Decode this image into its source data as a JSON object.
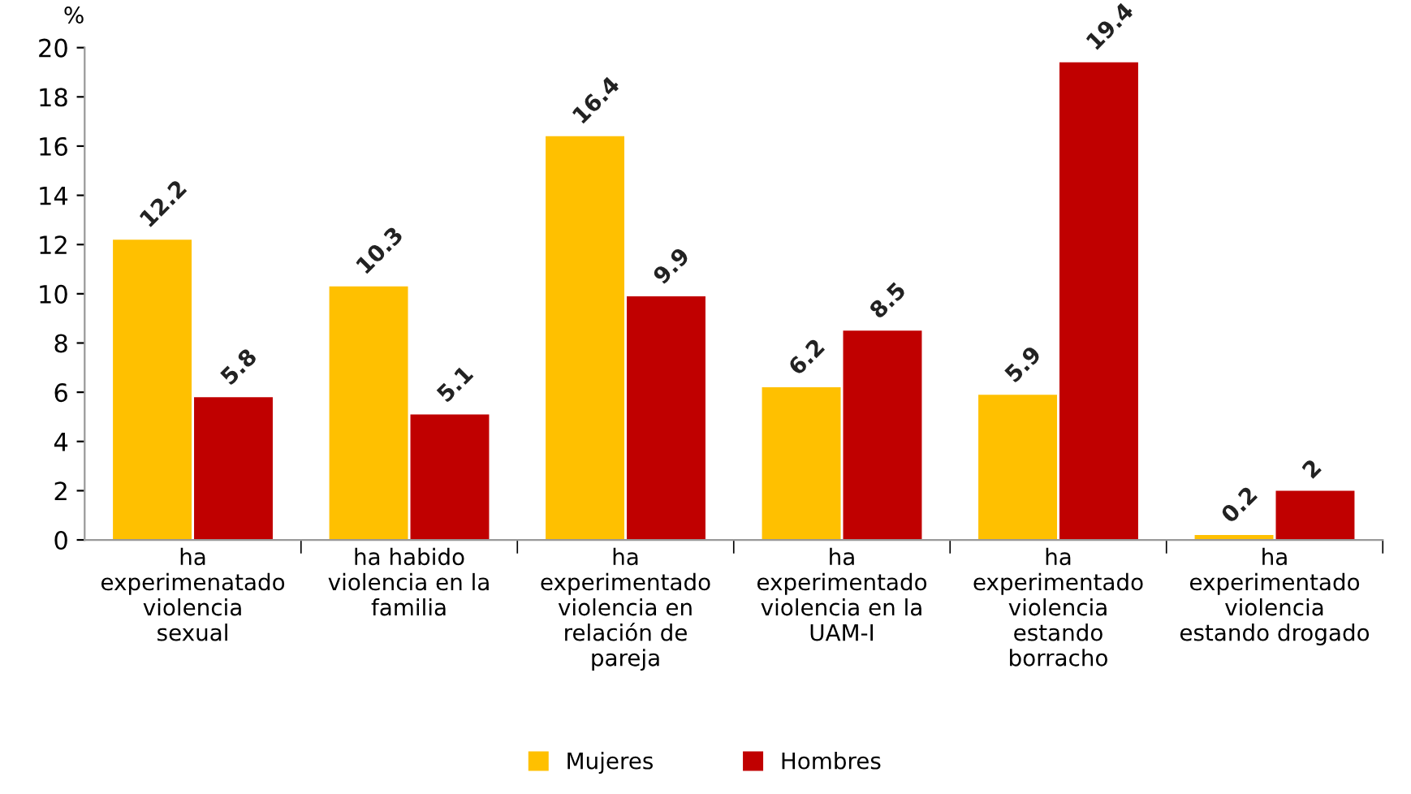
{
  "chart_data": {
    "type": "bar",
    "ylabel": "%",
    "categories": [
      "ha experimenatado violencia sexual",
      "ha habido violencia en la familia",
      "ha experimentado violencia en relación de pareja",
      "ha experimentado violencia en la UAM-I",
      "ha experimentado violencia estando borracho",
      "ha experimentado violencia estando drogado"
    ],
    "series": [
      {
        "name": "Mujeres",
        "color": "#ffc000",
        "values": [
          12.2,
          10.3,
          16.4,
          6.2,
          5.9,
          0.2
        ]
      },
      {
        "name": "Hombres",
        "color": "#c00000",
        "values": [
          5.8,
          5.1,
          9.9,
          8.5,
          19.4,
          2
        ]
      }
    ],
    "ylim": [
      0,
      20
    ],
    "yticks": [
      0,
      2,
      4,
      6,
      8,
      10,
      12,
      14,
      16,
      18,
      20
    ],
    "data_labels": true,
    "grid": false,
    "legend": "bottom"
  }
}
